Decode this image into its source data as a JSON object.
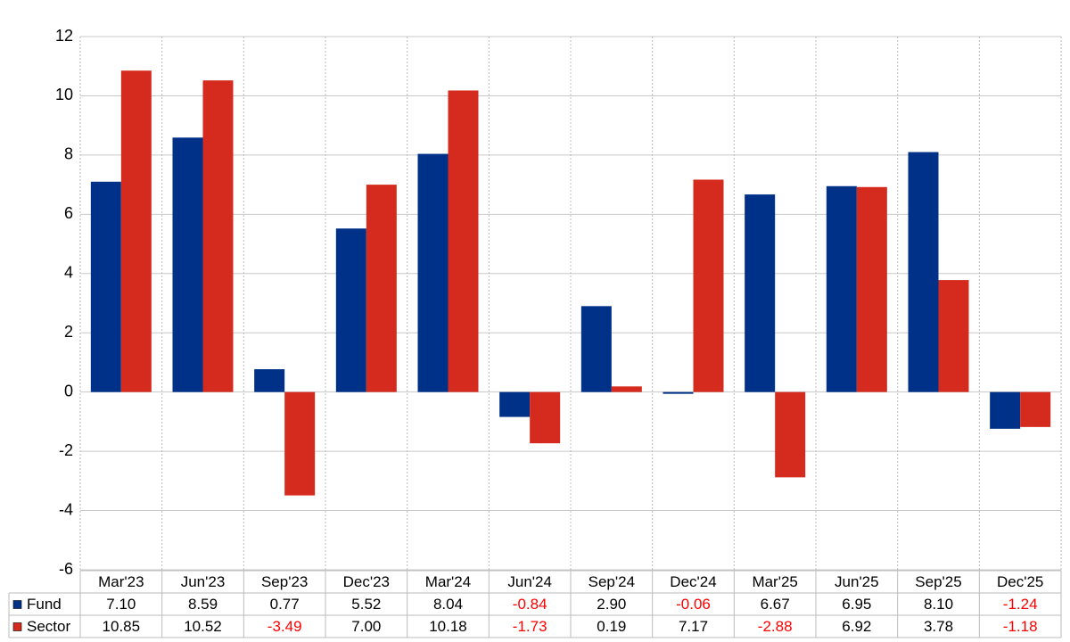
{
  "chart_data": {
    "type": "bar",
    "categories": [
      "Mar'23",
      "Jun'23",
      "Sep'23",
      "Dec'23",
      "Mar'24",
      "Jun'24",
      "Sep'24",
      "Dec'24",
      "Mar'25",
      "Jun'25",
      "Sep'25",
      "Dec'25"
    ],
    "series": [
      {
        "name": "Fund",
        "color": "#003189",
        "values": [
          7.1,
          8.59,
          0.77,
          5.52,
          8.04,
          -0.84,
          2.9,
          -0.06,
          6.67,
          6.95,
          8.1,
          -1.24
        ],
        "value_labels": [
          "7.10",
          "8.59",
          "0.77",
          "5.52",
          "8.04",
          "-0.84",
          "2.90",
          "-0.06",
          "6.67",
          "6.95",
          "8.10",
          "-1.24"
        ]
      },
      {
        "name": "Sector",
        "color": "#d52b1e",
        "values": [
          10.85,
          10.52,
          -3.49,
          7.0,
          10.18,
          -1.73,
          0.19,
          7.17,
          -2.88,
          6.92,
          3.78,
          -1.18
        ],
        "value_labels": [
          "10.85",
          "10.52",
          "-3.49",
          "7.00",
          "10.18",
          "-1.73",
          "0.19",
          "7.17",
          "-2.88",
          "6.92",
          "3.78",
          "-1.18"
        ]
      }
    ],
    "ylim": [
      -6,
      12
    ],
    "yticks": [
      -6,
      -4,
      -2,
      0,
      2,
      4,
      6,
      8,
      10,
      12
    ],
    "grid": true
  }
}
